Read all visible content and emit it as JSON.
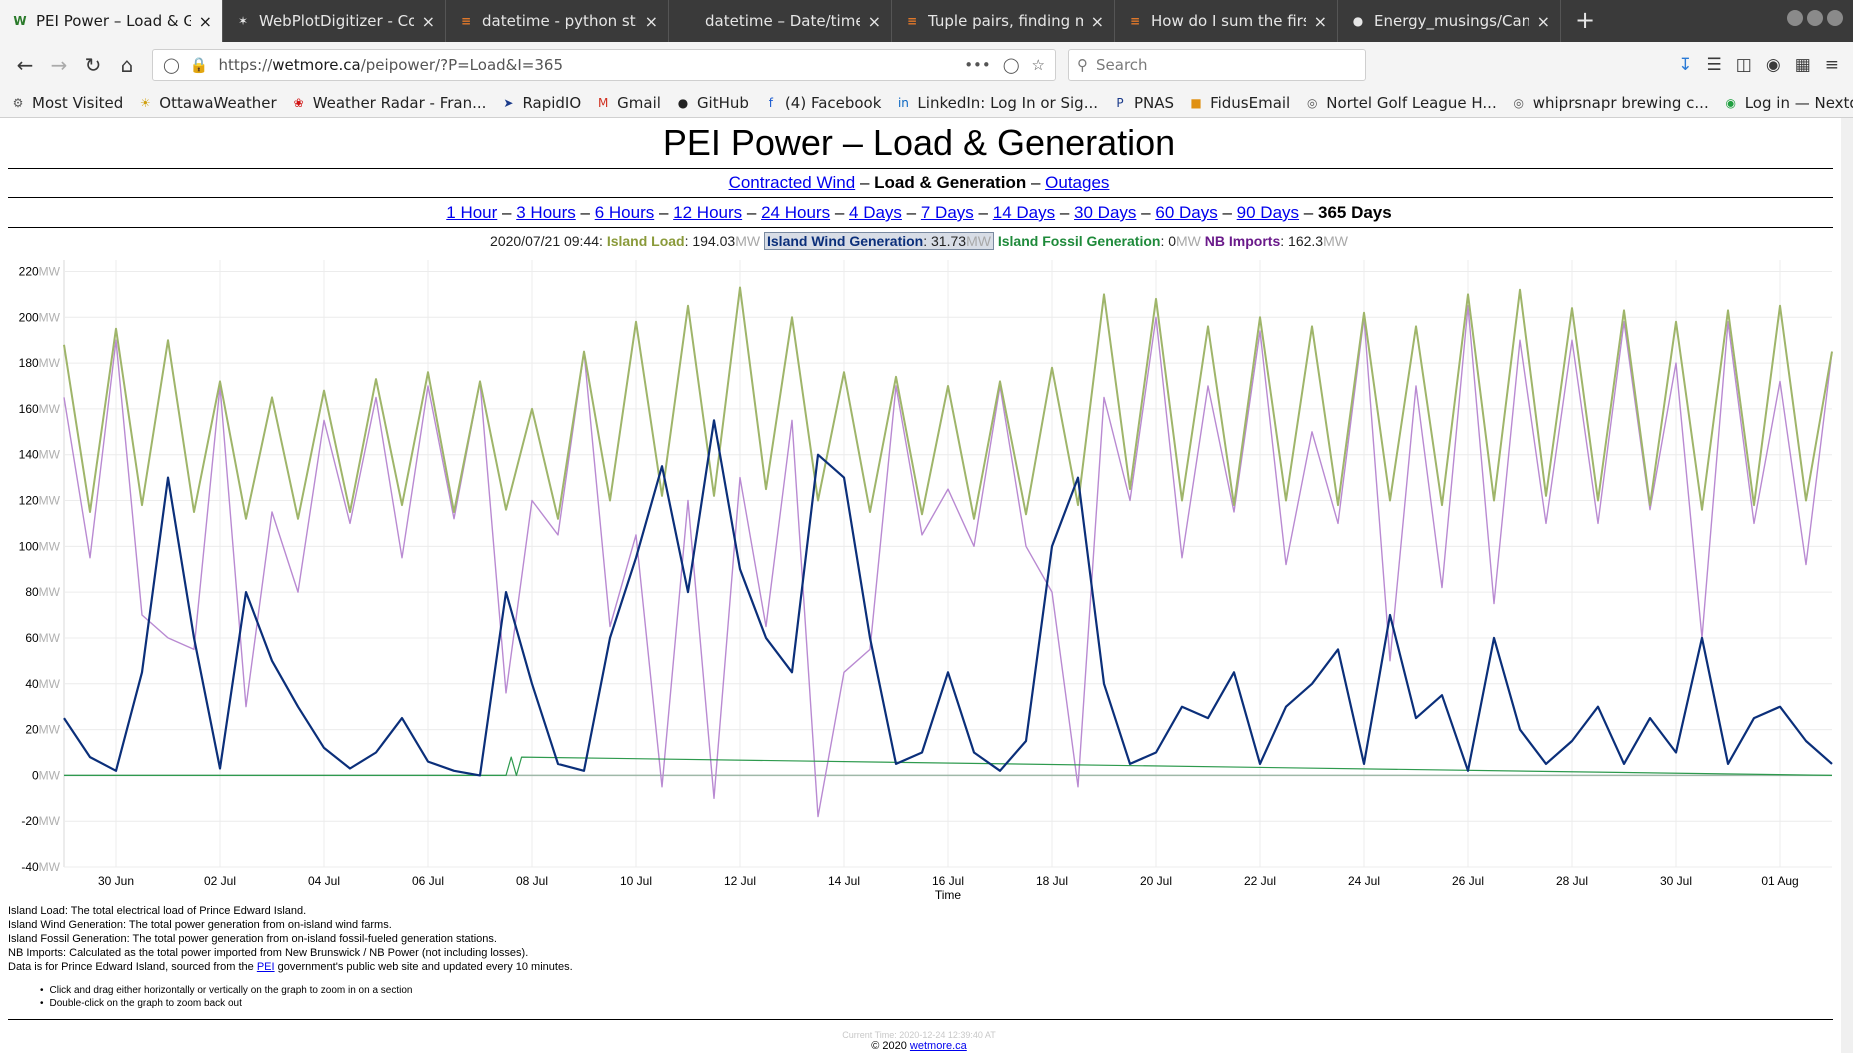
{
  "browser": {
    "tabs": [
      {
        "label": "PEI Power – Load & Gene",
        "icon": "wordpress-icon",
        "active": true
      },
      {
        "label": "WebPlotDigitizer - Copyr",
        "icon": "webplotdigitizer-icon",
        "active": false
      },
      {
        "label": "datetime - python strftin",
        "icon": "stackoverflow-icon",
        "active": false
      },
      {
        "label": "datetime – Date/time value",
        "icon": "",
        "active": false
      },
      {
        "label": "Tuple pairs, finding minin",
        "icon": "stackoverflow-icon",
        "active": false
      },
      {
        "label": "How do I sum the first va",
        "icon": "stackoverflow-icon",
        "active": false
      },
      {
        "label": "Energy_musings/Canada",
        "icon": "github-icon",
        "active": false
      }
    ],
    "url_prefix": "https://",
    "url_host": "wetmore.ca",
    "url_path": "/peipower/?P=Load&I=365",
    "search_placeholder": "Search",
    "bookmarks": [
      {
        "label": "Most Visited",
        "icon": "gear-icon"
      },
      {
        "label": "OttawaWeather",
        "icon": "sun-icon"
      },
      {
        "label": "Weather Radar - Fran...",
        "icon": "maple-leaf-icon"
      },
      {
        "label": "RapidIO",
        "icon": "rapidio-icon"
      },
      {
        "label": "Gmail",
        "icon": "gmail-icon"
      },
      {
        "label": "GitHub",
        "icon": "github-icon"
      },
      {
        "label": "(4) Facebook",
        "icon": "facebook-icon"
      },
      {
        "label": "LinkedIn: Log In or Sig...",
        "icon": "linkedin-icon"
      },
      {
        "label": "PNAS",
        "icon": "pnas-icon"
      },
      {
        "label": "FidusEmail",
        "icon": "fidus-icon"
      },
      {
        "label": "Nortel Golf League H...",
        "icon": "globe-icon"
      },
      {
        "label": "whiprsnapr brewing c...",
        "icon": "globe-icon"
      },
      {
        "label": "Log in — Nextdoor",
        "icon": "nextdoor-icon"
      }
    ]
  },
  "page": {
    "title": "PEI Power – Load & Generation",
    "nav1": {
      "link1": "Contracted Wind",
      "sep": "–",
      "current": "Load & Generation",
      "link2": "Outages"
    },
    "ranges": [
      "1 Hour",
      "3 Hours",
      "6 Hours",
      "12 Hours",
      "24 Hours",
      "4 Days",
      "7 Days",
      "14 Days",
      "30 Days",
      "60 Days",
      "90 Days"
    ],
    "current_range": "365 Days",
    "legend": {
      "timestamp": "2020/07/21 09:44:",
      "unit": "MW",
      "load_label": "Island Load",
      "load_value": "194.03",
      "wind_label": "Island Wind Generation",
      "wind_value": "31.73",
      "fossil_label": "Island Fossil Generation",
      "fossil_value": "0",
      "imports_label": "NB Imports",
      "imports_value": "162.3"
    },
    "notes": [
      "Island Load: The total electrical load of Prince Edward Island.",
      "Island Wind Generation: The total power generation from on-island wind farms.",
      "Island Fossil Generation: The total power generation from on-island fossil-fueled generation stations.",
      "NB Imports: Calculated as the total power imported from New Brunswick / NB Power (not including losses)."
    ],
    "source_note": {
      "before": "Data is for Prince Edward Island, sourced from the ",
      "link": "PEI",
      "after": " government's public web site and updated every 10 minutes."
    },
    "tips": [
      "Click and drag either horizontally or vertically on the graph to zoom in on a section",
      "Double-click on the graph to zoom back out"
    ],
    "footer_time": "Current Time: 2020-12-24 12:39:40 AT",
    "footer_copy": "© 2020",
    "footer_link": "wetmore.ca"
  },
  "chart_data": {
    "type": "line",
    "xlabel": "Time",
    "ylabel": "",
    "y_unit": "MW",
    "ylim": [
      -40,
      225
    ],
    "y_ticks": [
      -40,
      -20,
      0,
      20,
      40,
      60,
      80,
      100,
      120,
      140,
      160,
      180,
      200,
      220
    ],
    "x_range_days": [
      "2020-06-29",
      "2020-08-02"
    ],
    "x_ticks": [
      "30 Jun",
      "02 Jul",
      "04 Jul",
      "06 Jul",
      "08 Jul",
      "10 Jul",
      "12 Jul",
      "14 Jul",
      "16 Jul",
      "18 Jul",
      "20 Jul",
      "22 Jul",
      "24 Jul",
      "26 Jul",
      "28 Jul",
      "30 Jul",
      "01 Aug"
    ],
    "grid": true,
    "colors": {
      "load": "#9fb56a",
      "wind": "#0b2f7a",
      "fossil": "#2e9a4e",
      "imports": "#b98ad2",
      "zero_line": "#9fb8a8"
    },
    "series": [
      {
        "name": "Island Load",
        "x": [
          0,
          0.5,
          1,
          1.5,
          2,
          2.5,
          3,
          3.5,
          4,
          4.5,
          5,
          5.5,
          6,
          6.5,
          7,
          7.5,
          8,
          8.5,
          9,
          9.5,
          10,
          10.5,
          11,
          11.5,
          12,
          12.5,
          13,
          13.5,
          14,
          14.5,
          15,
          15.5,
          16,
          16.5,
          17,
          17.5,
          18,
          18.5,
          19,
          19.5,
          20,
          20.5,
          21,
          21.5,
          22,
          22.5,
          23,
          23.5,
          24,
          24.5,
          25,
          25.5,
          26,
          26.5,
          27,
          27.5,
          28,
          28.5,
          29,
          29.5,
          30,
          30.5,
          31,
          31.5,
          32,
          32.5,
          33,
          33.5,
          34
        ],
        "values": [
          188,
          115,
          195,
          118,
          190,
          115,
          172,
          112,
          165,
          112,
          168,
          115,
          173,
          118,
          176,
          115,
          172,
          116,
          160,
          112,
          185,
          120,
          198,
          122,
          205,
          122,
          213,
          125,
          200,
          120,
          176,
          115,
          174,
          114,
          170,
          112,
          172,
          114,
          178,
          118,
          210,
          125,
          208,
          120,
          196,
          118,
          200,
          120,
          196,
          118,
          202,
          120,
          196,
          118,
          210,
          120,
          212,
          122,
          204,
          120,
          203,
          118,
          198,
          116,
          203,
          118,
          205,
          120,
          185
        ]
      },
      {
        "name": "Island Wind Generation",
        "x": [
          0,
          0.5,
          1,
          1.5,
          2,
          2.5,
          3,
          3.5,
          4,
          4.5,
          5,
          5.5,
          6,
          6.5,
          7,
          7.5,
          8,
          8.5,
          9,
          9.5,
          10,
          10.5,
          11,
          11.5,
          12,
          12.5,
          13,
          13.5,
          14,
          14.5,
          15,
          15.5,
          16,
          16.5,
          17,
          17.5,
          18,
          18.5,
          19,
          19.5,
          20,
          20.5,
          21,
          21.5,
          22,
          22.5,
          23,
          23.5,
          24,
          24.5,
          25,
          25.5,
          26,
          26.5,
          27,
          27.5,
          28,
          28.5,
          29,
          29.5,
          30,
          30.5,
          31,
          31.5,
          32,
          32.5,
          33,
          33.5,
          34
        ],
        "values": [
          25,
          8,
          2,
          45,
          130,
          60,
          3,
          80,
          50,
          30,
          12,
          3,
          10,
          25,
          6,
          2,
          0,
          80,
          40,
          5,
          2,
          60,
          95,
          135,
          80,
          155,
          90,
          60,
          45,
          140,
          130,
          60,
          5,
          10,
          45,
          10,
          2,
          15,
          100,
          130,
          40,
          5,
          10,
          30,
          25,
          45,
          5,
          30,
          40,
          55,
          5,
          70,
          25,
          35,
          2,
          60,
          20,
          5,
          15,
          30,
          5,
          25,
          10,
          60,
          5,
          25,
          30,
          15,
          5
        ]
      },
      {
        "name": "Island Fossil Generation",
        "x": [
          0,
          8.5,
          8.6,
          8.7,
          8.8,
          34
        ],
        "values": [
          0,
          0,
          8,
          0,
          8,
          0
        ]
      },
      {
        "name": "NB Imports",
        "x": [
          0,
          0.5,
          1,
          1.5,
          2,
          2.5,
          3,
          3.5,
          4,
          4.5,
          5,
          5.5,
          6,
          6.5,
          7,
          7.5,
          8,
          8.5,
          9,
          9.5,
          10,
          10.5,
          11,
          11.5,
          12,
          12.5,
          13,
          13.5,
          14,
          14.5,
          15,
          15.5,
          16,
          16.5,
          17,
          17.5,
          18,
          18.5,
          19,
          19.5,
          20,
          20.5,
          21,
          21.5,
          22,
          22.5,
          23,
          23.5,
          24,
          24.5,
          25,
          25.5,
          26,
          26.5,
          27,
          27.5,
          28,
          28.5,
          29,
          29.5,
          30,
          30.5,
          31,
          31.5,
          32,
          32.5,
          33,
          33.5,
          34
        ],
        "values": [
          165,
          95,
          190,
          70,
          60,
          55,
          170,
          30,
          115,
          80,
          155,
          110,
          165,
          95,
          170,
          112,
          172,
          36,
          120,
          105,
          185,
          65,
          105,
          -5,
          120,
          -10,
          130,
          65,
          155,
          -18,
          45,
          55,
          170,
          105,
          125,
          100,
          170,
          100,
          80,
          -5,
          165,
          120,
          200,
          95,
          170,
          115,
          194,
          92,
          150,
          110,
          200,
          50,
          170,
          82,
          205,
          75,
          190,
          110,
          190,
          110,
          198,
          116,
          180,
          60,
          198,
          110,
          172,
          92,
          185
        ]
      }
    ]
  }
}
